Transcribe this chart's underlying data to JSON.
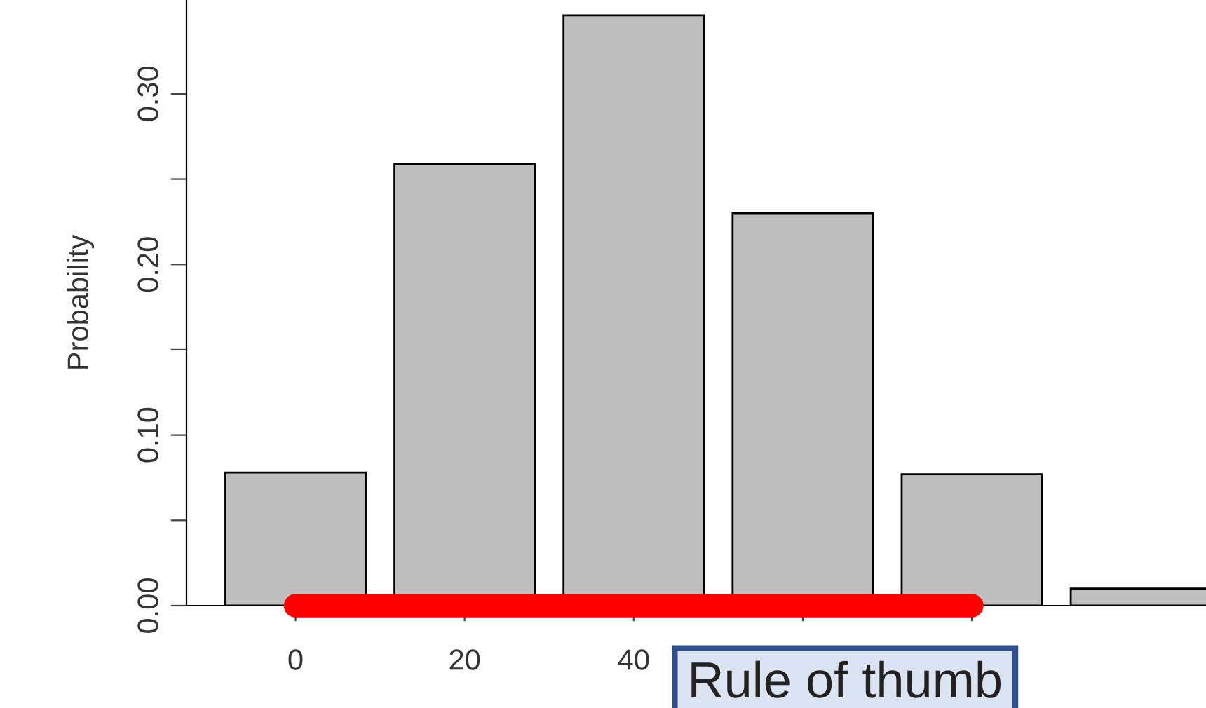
{
  "chart_data": {
    "type": "bar",
    "ylabel": "Probability",
    "x": [
      0,
      20,
      40,
      60,
      80,
      100
    ],
    "series": [
      {
        "color": "#bebebe",
        "values": [
          0.078,
          0.259,
          0.346,
          0.23,
          0.077,
          0.01
        ]
      },
      {
        "type": "line",
        "x": [
          0,
          80
        ],
        "values": [
          0,
          0
        ],
        "color": "#ff0000"
      }
    ],
    "xlim": [
      -12.9,
      107.7
    ],
    "xticks": [
      0,
      20,
      40,
      {
        "value": 60,
        "label": null
      },
      {
        "value": 80,
        "label": null
      }
    ],
    "ylim": [
      0,
      0.355
    ],
    "yticks": [
      {
        "value": 0,
        "label": "0.00"
      },
      {
        "value": 0.05,
        "label": null
      },
      {
        "value": 0.1,
        "label": "0.10"
      },
      {
        "value": 0.15,
        "label": null
      },
      {
        "value": 0.2,
        "label": "0.20"
      },
      {
        "value": 0.25,
        "label": null
      },
      {
        "value": 0.3,
        "label": "0.30"
      }
    ],
    "annotations": [
      "Rule of thumb"
    ],
    "grid": false,
    "legend": false
  }
}
